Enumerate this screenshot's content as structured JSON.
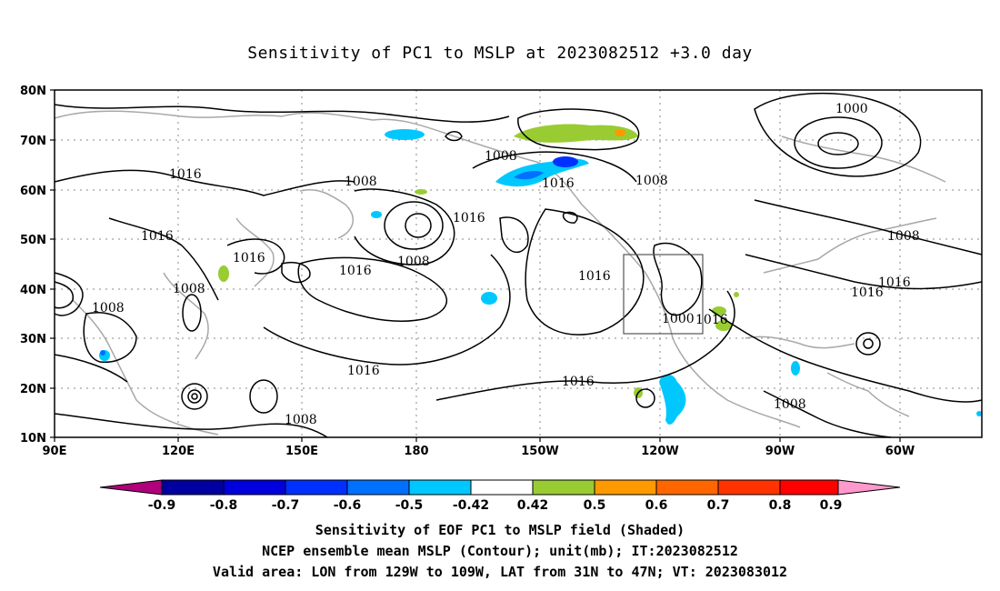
{
  "title": "Sensitivity of PC1 to MSLP at 2023082512 +3.0 day",
  "map": {
    "lat_ticks": [
      "80N",
      "70N",
      "60N",
      "50N",
      "40N",
      "30N",
      "20N",
      "10N"
    ],
    "lon_ticks": [
      "90E",
      "120E",
      "150E",
      "180",
      "150W",
      "120W",
      "90W",
      "60W"
    ],
    "contour_labels": [
      "1016",
      "1016",
      "1016",
      "1016",
      "1016",
      "1016",
      "1016",
      "1016",
      "1016",
      "1016",
      "1016",
      "1016",
      "1008",
      "1008",
      "1008",
      "1008",
      "1008",
      "1008",
      "1008",
      "1008",
      "1008",
      "1000",
      "1000"
    ],
    "valid_area_box": {
      "lon": [
        -129,
        -109
      ],
      "lat": [
        31,
        47
      ]
    }
  },
  "colorbar": {
    "labels": [
      "-0.9",
      "-0.8",
      "-0.7",
      "-0.6",
      "-0.5",
      "-0.42",
      "0.42",
      "0.5",
      "0.6",
      "0.7",
      "0.8",
      "0.9"
    ],
    "colors": [
      "#b0007a",
      "#0000a0",
      "#0000dc",
      "#0030ff",
      "#0070ff",
      "#00c8ff",
      "#ffffff",
      "#99cc33",
      "#ff9900",
      "#ff6600",
      "#ff3300",
      "#ff0000",
      "#ff99cc"
    ]
  },
  "footer": {
    "line1": "Sensitivity of EOF PC1 to MSLP field (Shaded)",
    "line2": "NCEP ensemble mean MSLP (Contour); unit(mb); IT:2023082512",
    "line3": "Valid area: LON from 129W to 109W, LAT from 31N to 47N; VT: 2023083012"
  }
}
